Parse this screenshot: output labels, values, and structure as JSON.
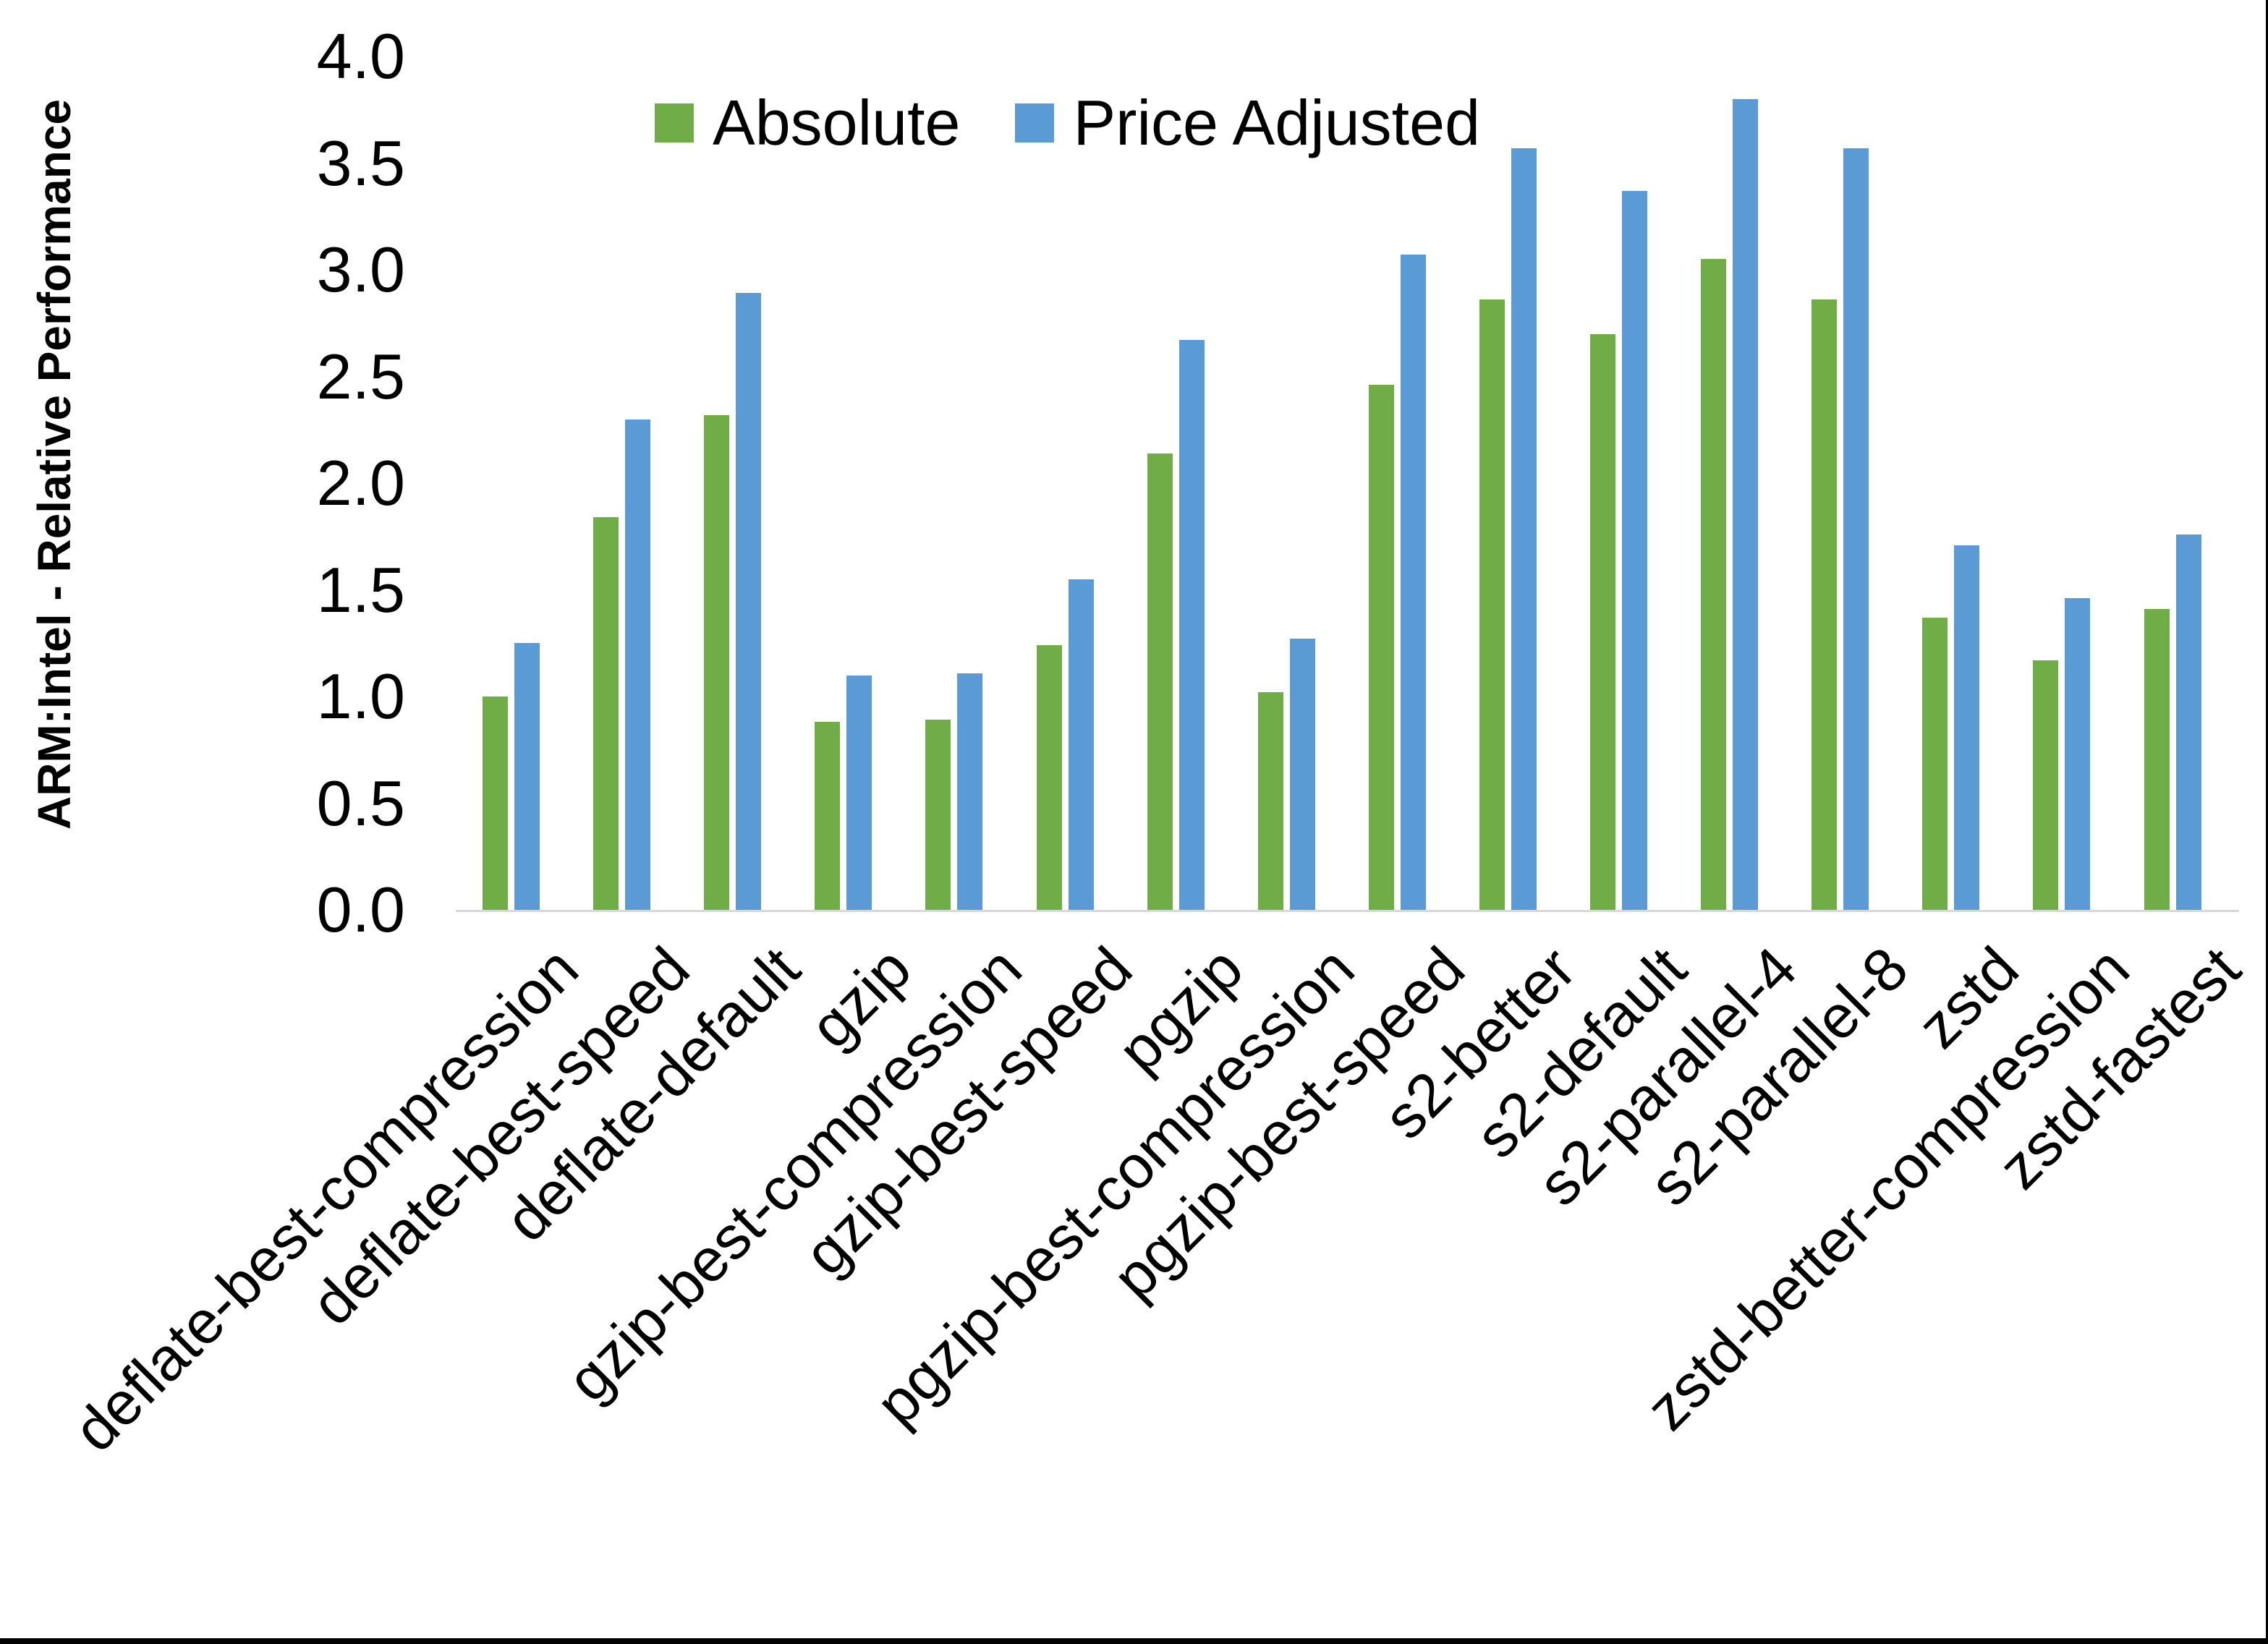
{
  "chart_data": {
    "type": "bar",
    "title": "",
    "ylabel": "ARM:Intel - Relative Performance",
    "xlabel": "",
    "ylim": [
      0.0,
      4.0
    ],
    "ytick_step": 0.5,
    "yticks": [
      "0.0",
      "0.5",
      "1.0",
      "1.5",
      "2.0",
      "2.5",
      "3.0",
      "3.5",
      "4.0"
    ],
    "grid": false,
    "legend_position": "top",
    "categories": [
      "deflate-best-compression",
      "deflate-best-speed",
      "deflate-default",
      "gzip",
      "gzip-best-compression",
      "gzip-best-speed",
      "pgzip",
      "pgzip-best-compression",
      "pgzip-best-speed",
      "s2-better",
      "s2-default",
      "s2-parallel-4",
      "s2-parallel-8",
      "zstd",
      "zstd-better-compression",
      "zstd-fastest"
    ],
    "series": [
      {
        "name": "Absolute",
        "color": "#70AD47",
        "values": [
          1.0,
          1.84,
          2.32,
          0.88,
          0.89,
          1.24,
          2.14,
          1.02,
          2.46,
          2.86,
          2.7,
          3.05,
          2.86,
          1.37,
          1.17,
          1.41
        ]
      },
      {
        "name": "Price Adjusted",
        "color": "#5B9BD5",
        "values": [
          1.25,
          2.3,
          2.89,
          1.1,
          1.11,
          1.55,
          2.67,
          1.27,
          3.07,
          3.57,
          3.37,
          3.8,
          3.57,
          1.71,
          1.46,
          1.76
        ]
      }
    ],
    "colors": {
      "absolute": "#70AD47",
      "price_adjusted": "#5B9BD5",
      "axis_line": "#D8D8D8",
      "text": "#000000",
      "border": "#000000"
    }
  }
}
